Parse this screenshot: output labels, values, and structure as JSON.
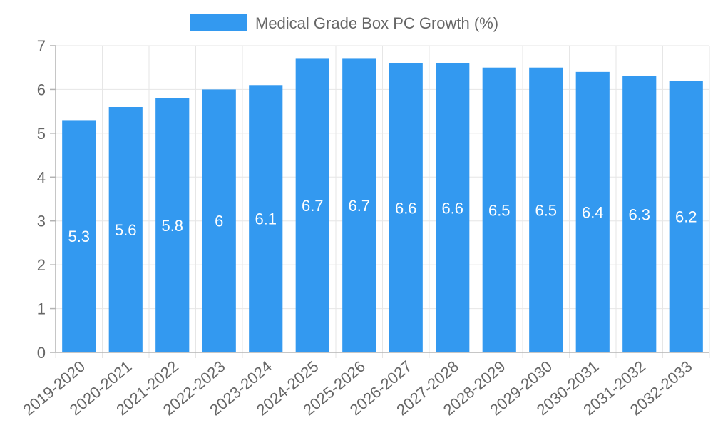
{
  "chart_data": {
    "type": "bar",
    "title": "",
    "xlabel": "",
    "ylabel": "",
    "ylim": [
      0,
      7
    ],
    "yticks": [
      0,
      1,
      2,
      3,
      4,
      5,
      6,
      7
    ],
    "grid": true,
    "legend_position": "top-center",
    "categories": [
      "2019-2020",
      "2020-2021",
      "2021-2022",
      "2022-2023",
      "2023-2024",
      "2024-2025",
      "2025-2026",
      "2026-2027",
      "2027-2028",
      "2028-2029",
      "2029-2030",
      "2030-2031",
      "2031-2032",
      "2032-2033"
    ],
    "series": [
      {
        "name": "Medical Grade Box PC Growth (%)",
        "color": "#3399f0",
        "values": [
          5.3,
          5.6,
          5.8,
          6,
          6.1,
          6.7,
          6.7,
          6.6,
          6.6,
          6.5,
          6.5,
          6.4,
          6.3,
          6.2
        ]
      }
    ]
  }
}
